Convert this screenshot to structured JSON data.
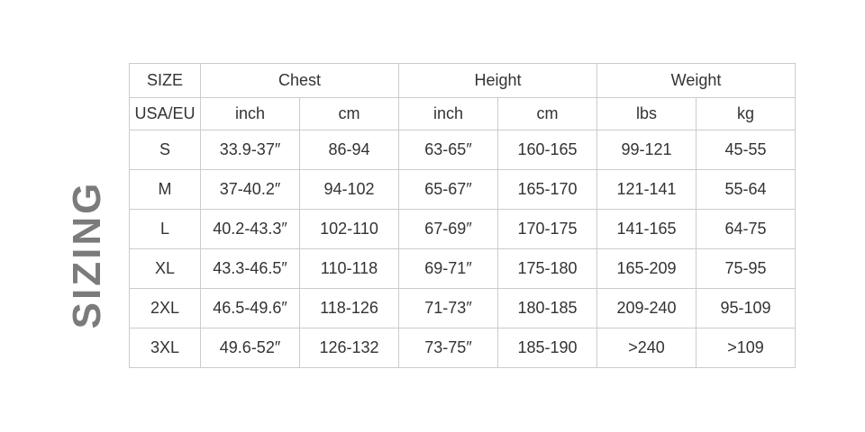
{
  "title": "SIZING",
  "colors": {
    "background": "#ffffff",
    "table_text": "#333333",
    "border": "#cccccc",
    "side_label_gray": "#7b7b7b"
  },
  "chart_data": {
    "type": "table",
    "title": "SIZING",
    "group_headers": [
      {
        "label": "SIZE",
        "span": 1
      },
      {
        "label": "Chest",
        "span": 2
      },
      {
        "label": "Height",
        "span": 2
      },
      {
        "label": "Weight",
        "span": 2
      }
    ],
    "unit_headers": [
      "USA/EU",
      "inch",
      "cm",
      "inch",
      "cm",
      "lbs",
      "kg"
    ],
    "rows": [
      [
        "S",
        "33.9-37″",
        "86-94",
        "63-65″",
        "160-165",
        "99-121",
        "45-55"
      ],
      [
        "M",
        "37-40.2″",
        "94-102",
        "65-67″",
        "165-170",
        "121-141",
        "55-64"
      ],
      [
        "L",
        "40.2-43.3″",
        "102-110",
        "67-69″",
        "170-175",
        "141-165",
        "64-75"
      ],
      [
        "XL",
        "43.3-46.5″",
        "110-118",
        "69-71″",
        "175-180",
        "165-209",
        "75-95"
      ],
      [
        "2XL",
        "46.5-49.6″",
        "118-126",
        "71-73″",
        "180-185",
        "209-240",
        "95-109"
      ],
      [
        "3XL",
        "49.6-52″",
        "126-132",
        "73-75″",
        "185-190",
        ">240",
        ">109"
      ]
    ],
    "layout": {
      "grid": true,
      "orientation": "size rows × measurement columns"
    }
  }
}
